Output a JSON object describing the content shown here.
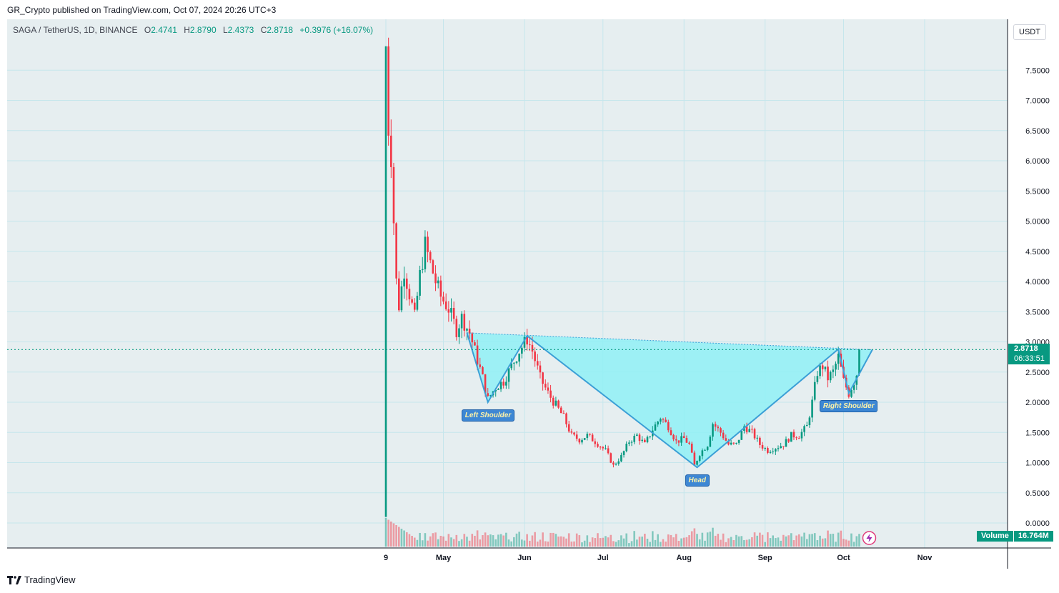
{
  "header": {
    "publish_text": "GR_Crypto published on TradingView.com, Oct 07, 2024 20:26 UTC+3"
  },
  "legend": {
    "symbol": "SAGA / TetherUS, 1D, BINANCE",
    "open_label": "O",
    "open": "2.4741",
    "high_label": "H",
    "high": "2.8790",
    "low_label": "L",
    "low": "2.4373",
    "close_label": "C",
    "close": "2.8718",
    "change": "+0.3976 (+16.07%)"
  },
  "currency": "USDT",
  "price_tag": {
    "price": "2.8718",
    "countdown": "06:33:51"
  },
  "volume_tag": {
    "label": "Volume",
    "value": "16.764M"
  },
  "footer": {
    "brand": "TradingView"
  },
  "colors": {
    "up": "#089981",
    "down": "#f23645",
    "pattern_fill": "#8ff0f6",
    "pattern_line": "#3b9fd6",
    "grid": "#c6e6ec",
    "background": "#e6eef0"
  },
  "chart_data": {
    "type": "candlestick",
    "symbol": "SAGA / TetherUS",
    "y_axis_ticks": [
      "7.5000",
      "7.0000",
      "6.5000",
      "6.0000",
      "5.5000",
      "5.0000",
      "4.5000",
      "4.0000",
      "3.5000",
      "3.0000",
      "2.5000",
      "2.0000",
      "1.5000",
      "1.0000",
      "0.5000",
      "0.0000"
    ],
    "y_tick_values": [
      7.5,
      7.0,
      6.5,
      6.0,
      5.5,
      5.0,
      4.5,
      4.0,
      3.5,
      3.0,
      2.5,
      2.0,
      1.5,
      1.0,
      0.5,
      0.0
    ],
    "x_axis_ticks": [
      {
        "label": "9",
        "date": "2024-04-09"
      },
      {
        "label": "May",
        "date": "2024-05-01"
      },
      {
        "label": "Jun",
        "date": "2024-06-01"
      },
      {
        "label": "Jul",
        "date": "2024-07-01"
      },
      {
        "label": "Aug",
        "date": "2024-08-01"
      },
      {
        "label": "Sep",
        "date": "2024-09-01"
      },
      {
        "label": "Oct",
        "date": "2024-10-01"
      },
      {
        "label": "Nov",
        "date": "2024-11-01"
      }
    ],
    "date_range": [
      "2024-04-09",
      "2024-11-15"
    ],
    "last_price": 2.8718,
    "price_path": [
      [
        "2024-04-09",
        7.9
      ],
      [
        "2024-04-10",
        6.55
      ],
      [
        "2024-04-11",
        6.1
      ],
      [
        "2024-04-12",
        5.0
      ],
      [
        "2024-04-13",
        4.0
      ],
      [
        "2024-04-14",
        3.6
      ],
      [
        "2024-04-16",
        4.2
      ],
      [
        "2024-04-18",
        3.8
      ],
      [
        "2024-04-20",
        3.4
      ],
      [
        "2024-04-22",
        4.1
      ],
      [
        "2024-04-24",
        4.6
      ],
      [
        "2024-04-26",
        4.3
      ],
      [
        "2024-04-28",
        4.0
      ],
      [
        "2024-04-30",
        3.75
      ],
      [
        "2024-05-03",
        3.55
      ],
      [
        "2024-05-06",
        3.2
      ],
      [
        "2024-05-08",
        3.4
      ],
      [
        "2024-05-11",
        3.15
      ],
      [
        "2024-05-13",
        2.85
      ],
      [
        "2024-05-16",
        2.4
      ],
      [
        "2024-05-18",
        2.05
      ],
      [
        "2024-05-21",
        2.25
      ],
      [
        "2024-05-24",
        2.35
      ],
      [
        "2024-05-27",
        2.6
      ],
      [
        "2024-05-30",
        2.85
      ],
      [
        "2024-06-02",
        3.05
      ],
      [
        "2024-06-04",
        2.85
      ],
      [
        "2024-06-07",
        2.4
      ],
      [
        "2024-06-10",
        2.15
      ],
      [
        "2024-06-13",
        1.95
      ],
      [
        "2024-06-16",
        1.75
      ],
      [
        "2024-06-19",
        1.45
      ],
      [
        "2024-06-22",
        1.38
      ],
      [
        "2024-06-25",
        1.45
      ],
      [
        "2024-06-28",
        1.35
      ],
      [
        "2024-07-02",
        1.2
      ],
      [
        "2024-07-05",
        0.95
      ],
      [
        "2024-07-08",
        1.1
      ],
      [
        "2024-07-11",
        1.35
      ],
      [
        "2024-07-14",
        1.45
      ],
      [
        "2024-07-17",
        1.3
      ],
      [
        "2024-07-20",
        1.55
      ],
      [
        "2024-07-23",
        1.75
      ],
      [
        "2024-07-26",
        1.6
      ],
      [
        "2024-07-29",
        1.35
      ],
      [
        "2024-08-01",
        1.4
      ],
      [
        "2024-08-03",
        1.3
      ],
      [
        "2024-08-05",
        0.95
      ],
      [
        "2024-08-07",
        1.15
      ],
      [
        "2024-08-10",
        1.3
      ],
      [
        "2024-08-12",
        1.65
      ],
      [
        "2024-08-15",
        1.5
      ],
      [
        "2024-08-18",
        1.3
      ],
      [
        "2024-08-21",
        1.3
      ],
      [
        "2024-08-24",
        1.6
      ],
      [
        "2024-08-27",
        1.5
      ],
      [
        "2024-08-30",
        1.3
      ],
      [
        "2024-09-02",
        1.2
      ],
      [
        "2024-09-05",
        1.25
      ],
      [
        "2024-09-08",
        1.3
      ],
      [
        "2024-09-11",
        1.45
      ],
      [
        "2024-09-14",
        1.45
      ],
      [
        "2024-09-17",
        1.6
      ],
      [
        "2024-09-19",
        2.0
      ],
      [
        "2024-09-21",
        2.5
      ],
      [
        "2024-09-23",
        2.6
      ],
      [
        "2024-09-25",
        2.4
      ],
      [
        "2024-09-27",
        2.5
      ],
      [
        "2024-09-29",
        2.75
      ],
      [
        "2024-10-01",
        2.35
      ],
      [
        "2024-10-03",
        2.15
      ],
      [
        "2024-10-05",
        2.35
      ],
      [
        "2024-10-06",
        2.47
      ],
      [
        "2024-10-07",
        2.8718
      ]
    ],
    "pattern": {
      "name": "inverse head and shoulders",
      "labels": [
        "Left Shoulder",
        "Head",
        "Right Shoulder"
      ],
      "left_shoulder": [
        "2024-05-18",
        2.0
      ],
      "head": [
        "2024-08-06",
        0.92
      ],
      "right_shoulder": [
        "2024-10-03",
        2.15
      ],
      "neckline": [
        [
          "2024-05-10",
          3.15
        ],
        [
          "2024-06-02",
          3.1
        ],
        [
          "2024-09-29",
          2.88
        ],
        [
          "2024-10-12",
          2.87
        ]
      ]
    },
    "volume_label": "Volume",
    "volume_last": "16.764M"
  }
}
